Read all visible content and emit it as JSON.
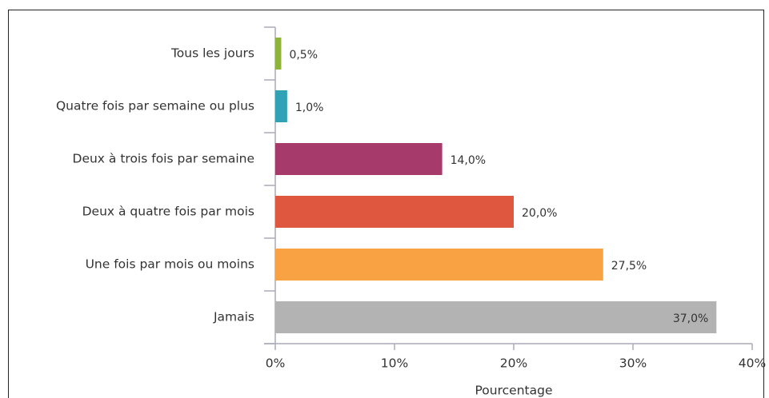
{
  "chart_data": {
    "type": "bar",
    "orientation": "horizontal",
    "x_label": "Pourcentage",
    "categories": [
      "Tous les jours",
      "Quatre fois par semaine ou plus",
      "Deux à trois fois par semaine",
      "Deux à quatre fois par mois",
      "Une fois par mois ou moins",
      "Jamais"
    ],
    "values": [
      0.5,
      1.0,
      14.0,
      20.0,
      27.5,
      37.0
    ],
    "value_labels": [
      "0,5%",
      "1,0%",
      "14,0%",
      "20,0%",
      "27,5%",
      "37,0%"
    ],
    "colors": [
      "#8db33a",
      "#2fa3b5",
      "#a63b6b",
      "#e0573f",
      "#f9a243",
      "#b3b3b3"
    ],
    "xlim": [
      0,
      40
    ],
    "xticks": [
      {
        "value": 0,
        "label": "0%"
      },
      {
        "value": 10,
        "label": "10%"
      },
      {
        "value": 20,
        "label": "20%"
      },
      {
        "value": 30,
        "label": "30%"
      },
      {
        "value": 40,
        "label": "40%"
      }
    ],
    "grid": false
  }
}
